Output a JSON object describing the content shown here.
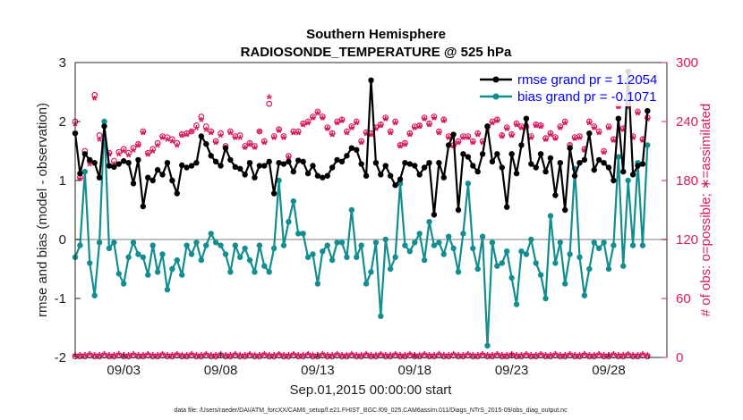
{
  "chart_data": {
    "type": "line",
    "title": "Southern Hemisphere",
    "subtitle": "RADIOSONDE_TEMPERATURE @ 525 hPa",
    "xlabel": "Sep.01,2015 00:00:00 start",
    "ylabel": "rmse and bias (model - observation)",
    "y2label": "# of obs: o=possible; ∗=assimilated",
    "footnote": "data file: /Users/raeder/DAI/ATM_forcXX/CAM6_setup/f.e21.FHIST_BGC.f09_025.CAM6assim.011/Diags_NTrS_2015-09/obs_diag_output.nc",
    "x_range": [
      0.5,
      31
    ],
    "ylim": [
      -2,
      3
    ],
    "y2lim": [
      0,
      300
    ],
    "x_tick_positions": [
      3,
      8,
      13,
      18,
      23,
      28
    ],
    "x_tick_labels": [
      "09/03",
      "09/08",
      "09/13",
      "09/18",
      "09/23",
      "09/28"
    ],
    "y_ticks": [
      -2,
      -1,
      0,
      1,
      2,
      3
    ],
    "y2_ticks": [
      0,
      60,
      120,
      180,
      240,
      300
    ],
    "legend": [
      "rmse grand pr = 1.2054",
      "bias grand pr = -0.1071"
    ],
    "colors": {
      "rmse": "#000000",
      "bias": "#138d90",
      "obs": "#d81b60",
      "zero": "#bdbdbd",
      "legend_text": "#0000ff"
    },
    "series": [
      {
        "name": "rmse grand pr = 1.2054",
        "axis": "left",
        "x_start": 0.5,
        "x_step": 0.25,
        "values": [
          1.8,
          1.12,
          1.45,
          1.35,
          1.3,
          1.05,
          1.92,
          1.25,
          1.23,
          1.28,
          1.33,
          1.3,
          0.95,
          1.35,
          0.56,
          1.05,
          1.0,
          1.18,
          1.1,
          1.3,
          1.0,
          0.78,
          1.26,
          1.22,
          1.25,
          1.3,
          1.75,
          1.62,
          1.42,
          1.32,
          1.25,
          1.55,
          1.35,
          1.23,
          1.2,
          1.1,
          1.3,
          1.05,
          1.25,
          1.25,
          1.32,
          0.78,
          1.3,
          1.28,
          1.32,
          1.15,
          1.34,
          1.32,
          1.12,
          1.25,
          1.08,
          1.05,
          1.08,
          1.22,
          1.35,
          1.32,
          1.42,
          1.55,
          1.52,
          1.28,
          1.08,
          2.7,
          1.3,
          1.1,
          1.25,
          1.08,
          0.92,
          1.02,
          1.3,
          1.28,
          1.25,
          1.1,
          1.22,
          1.3,
          0.42,
          1.3,
          1.05,
          1.6,
          1.78,
          0.5,
          1.45,
          1.4,
          1.25,
          1.15,
          1.45,
          1.92,
          1.32,
          1.45,
          1.22,
          0.55,
          1.45,
          1.12,
          1.6,
          2.05,
          1.28,
          1.22,
          1.45,
          1.15,
          1.38,
          0.75,
          1.3,
          0.5,
          1.55,
          1.08,
          1.3,
          1.35,
          1.8,
          1.18,
          1.35,
          1.3,
          1.22,
          1.0,
          2.05,
          1.15,
          2.85,
          1.1,
          1.25,
          1.28,
          2.18
        ]
      },
      {
        "name": "bias grand pr = -0.1071",
        "axis": "left",
        "x_start": 0.5,
        "x_step": 0.25,
        "values": [
          -0.3,
          -0.1,
          1.15,
          -0.4,
          -0.95,
          -0.05,
          2.0,
          -0.15,
          -0.05,
          -0.58,
          -0.75,
          -0.3,
          -0.05,
          -0.25,
          -0.3,
          -0.6,
          -0.1,
          -0.55,
          -0.25,
          -0.85,
          -0.5,
          -0.35,
          -0.6,
          -0.1,
          -0.25,
          -0.05,
          -0.35,
          -0.1,
          0.1,
          -0.05,
          -0.1,
          -0.25,
          -0.55,
          -0.1,
          -0.3,
          -0.15,
          -0.35,
          -0.55,
          -0.1,
          -0.45,
          -0.55,
          -0.15,
          1.0,
          -0.1,
          0.3,
          0.65,
          0.1,
          0.1,
          -0.3,
          -0.25,
          -0.75,
          -0.2,
          -0.1,
          -0.35,
          -0.05,
          -0.05,
          -0.3,
          0.5,
          -0.3,
          -0.1,
          -0.75,
          -0.55,
          -0.05,
          -1.3,
          0.0,
          -0.5,
          -0.3,
          0.95,
          -0.1,
          -0.2,
          -0.05,
          0.1,
          -0.35,
          0.3,
          -0.1,
          -0.05,
          -0.25,
          0.05,
          -0.15,
          -0.55,
          0.1,
          0.95,
          -0.15,
          -0.5,
          0.05,
          -1.8,
          -0.05,
          -0.45,
          -0.4,
          -0.2,
          -0.65,
          -1.1,
          -0.2,
          -0.25,
          0.0,
          -0.4,
          -0.6,
          -1.0,
          0.4,
          -0.4,
          -0.05,
          -0.75,
          -0.25,
          1.2,
          -0.3,
          -0.95,
          -0.5,
          -0.05,
          -0.15,
          -0.05,
          -0.5,
          -0.1,
          1.4,
          -0.45,
          1.0,
          -0.1,
          1.3,
          -0.1,
          1.6
        ]
      },
      {
        "name": "# of obs possible (o)",
        "axis": "right",
        "marker": "o",
        "x_start": 0.5,
        "x_step": 0.25,
        "values": [
          240,
          183,
          210,
          200,
          267,
          226,
          218,
          208,
          200,
          209,
          212,
          208,
          213,
          217,
          230,
          208,
          212,
          218,
          225,
          224,
          222,
          218,
          227,
          228,
          230,
          236,
          245,
          235,
          230,
          220,
          228,
          215,
          230,
          225,
          226,
          215,
          218,
          215,
          230,
          220,
          258,
          225,
          232,
          225,
          205,
          230,
          230,
          238,
          240,
          245,
          250,
          245,
          234,
          228,
          240,
          242,
          230,
          235,
          240,
          220,
          229,
          228,
          234,
          237,
          244,
          230,
          240,
          216,
          218,
          228,
          235,
          236,
          244,
          238,
          245,
          230,
          242,
          225,
          216,
          220,
          225,
          225,
          220,
          228,
          220,
          235,
          240,
          242,
          226,
          234,
          227,
          238,
          235,
          235,
          225,
          237,
          236,
          223,
          228,
          224,
          235,
          240,
          216,
          224,
          225,
          212,
          240,
          235,
          230,
          210,
          235,
          222,
          256,
          233,
          256,
          225,
          250,
          222,
          244
        ]
      },
      {
        "name": "# of obs assimilated (*)",
        "axis": "right",
        "marker": "*",
        "x_start": 0.5,
        "x_step": 0.25,
        "values": [
          236,
          180,
          205,
          195,
          262,
          220,
          212,
          205,
          195,
          205,
          208,
          204,
          209,
          214,
          227,
          205,
          208,
          214,
          222,
          220,
          218,
          214,
          224,
          225,
          228,
          232,
          240,
          230,
          227,
          217,
          224,
          212,
          227,
          222,
          222,
          212,
          215,
          212,
          228,
          217,
          263,
          222,
          229,
          222,
          202,
          227,
          227,
          235,
          237,
          242,
          247,
          242,
          231,
          225,
          237,
          239,
          227,
          232,
          237,
          217,
          226,
          225,
          231,
          234,
          241,
          227,
          237,
          213,
          215,
          225,
          232,
          233,
          241,
          235,
          242,
          227,
          239,
          222,
          213,
          217,
          222,
          222,
          217,
          225,
          217,
          232,
          237,
          239,
          223,
          231,
          224,
          235,
          232,
          232,
          222,
          234,
          233,
          220,
          225,
          221,
          232,
          237,
          213,
          221,
          222,
          209,
          237,
          232,
          227,
          207,
          232,
          219,
          253,
          230,
          253,
          222,
          247,
          219,
          241
        ]
      },
      {
        "name": "obs near zero possible (o)",
        "axis": "right",
        "marker": "o",
        "x_start": 0.5,
        "x_step": 0.25,
        "values": [
          1,
          1,
          1,
          2,
          1,
          1,
          2,
          1,
          1,
          2,
          1,
          1,
          2,
          1,
          1,
          2,
          1,
          1,
          2,
          1,
          1,
          2,
          1,
          1,
          2,
          1,
          1,
          2,
          1,
          1,
          2,
          1,
          1,
          2,
          1,
          1,
          2,
          1,
          1,
          2,
          1,
          1,
          2,
          1,
          1,
          2,
          1,
          1,
          2,
          1,
          1,
          2,
          1,
          1,
          2,
          1,
          1,
          2,
          1,
          1,
          2,
          1,
          1,
          2,
          1,
          1,
          2,
          1,
          1,
          2,
          1,
          1,
          2,
          1,
          1,
          2,
          1,
          1,
          2,
          1,
          1,
          2,
          1,
          1,
          2,
          1,
          1,
          2,
          1,
          1,
          2,
          1,
          1,
          2,
          1,
          1,
          2,
          1,
          1,
          2,
          1,
          1,
          2,
          1,
          1,
          2,
          1,
          1,
          2,
          1,
          1,
          2,
          1,
          1,
          2,
          1,
          1,
          2,
          1
        ]
      },
      {
        "name": "obs near zero assimilated (*)",
        "axis": "right",
        "marker": "*",
        "x_start": 0.5,
        "x_step": 0.25,
        "values": [
          1,
          1,
          1,
          2,
          1,
          1,
          2,
          1,
          1,
          2,
          1,
          1,
          2,
          1,
          1,
          2,
          1,
          1,
          2,
          1,
          1,
          2,
          1,
          1,
          2,
          1,
          1,
          2,
          1,
          1,
          2,
          1,
          1,
          2,
          1,
          1,
          2,
          1,
          1,
          2,
          1,
          1,
          2,
          1,
          1,
          2,
          1,
          1,
          2,
          1,
          1,
          2,
          1,
          1,
          2,
          1,
          1,
          2,
          1,
          1,
          2,
          1,
          1,
          2,
          1,
          1,
          2,
          1,
          1,
          2,
          1,
          1,
          2,
          1,
          1,
          2,
          1,
          1,
          2,
          1,
          1,
          2,
          1,
          1,
          2,
          1,
          1,
          2,
          1,
          1,
          2,
          1,
          1,
          2,
          1,
          1,
          2,
          1,
          1,
          2,
          1,
          1,
          2,
          1,
          1,
          2,
          1,
          1,
          2,
          1,
          1,
          2,
          1,
          1,
          2,
          1,
          1,
          2,
          1
        ]
      }
    ]
  }
}
